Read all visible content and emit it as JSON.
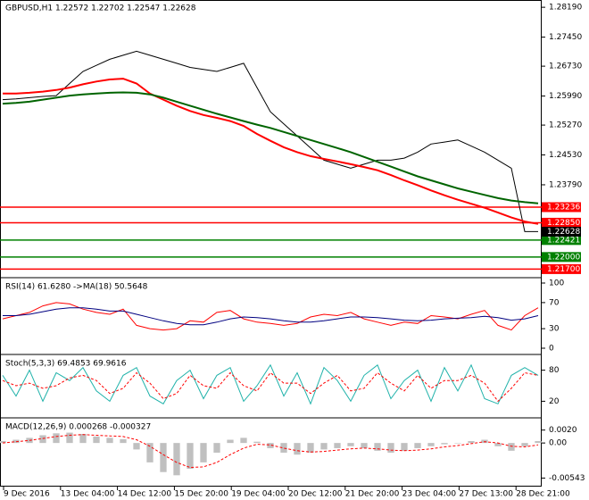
{
  "chart_data": [
    {
      "type": "line",
      "title": "GBPUSD,H1  1.22572 1.22702 1.22547 1.22628",
      "ylim": [
        1.2151,
        1.2837
      ],
      "yticks": [
        {
          "value": 1.2819,
          "label": "1.28190"
        },
        {
          "value": 1.2745,
          "label": "1.27450"
        },
        {
          "value": 1.2673,
          "label": "1.26730"
        },
        {
          "value": 1.2599,
          "label": "1.25990"
        },
        {
          "value": 1.2527,
          "label": "1.25270"
        },
        {
          "value": 1.2453,
          "label": "1.24530"
        },
        {
          "value": 1.2379,
          "label": "1.23790"
        }
      ],
      "series": [
        {
          "color": "#000000",
          "values": [
            1.259,
            1.2592,
            1.2595,
            1.2598,
            1.26,
            1.263,
            1.266,
            1.2675,
            1.269,
            1.27,
            1.271,
            1.27,
            1.269,
            1.268,
            1.267,
            1.2665,
            1.266,
            1.267,
            1.268,
            1.262,
            1.256,
            1.253,
            1.25,
            1.247,
            1.244,
            1.243,
            1.242,
            1.243,
            1.244,
            1.244,
            1.2445,
            1.246,
            1.248,
            1.2485,
            1.249,
            1.2475,
            1.246,
            1.244,
            1.242,
            1.2263,
            1.2263
          ]
        },
        {
          "color": "#ff0000",
          "values": [
            1.2605,
            1.2605,
            1.2607,
            1.261,
            1.2614,
            1.262,
            1.2628,
            1.2635,
            1.264,
            1.2642,
            1.263,
            1.2605,
            1.259,
            1.2575,
            1.2562,
            1.2552,
            1.2545,
            1.2537,
            1.2525,
            1.2505,
            1.2488,
            1.2472,
            1.246,
            1.245,
            1.2443,
            1.2437,
            1.243,
            1.2423,
            1.2415,
            1.2403,
            1.239,
            1.2378,
            1.2365,
            1.2353,
            1.2342,
            1.2332,
            1.2322,
            1.231,
            1.2298,
            1.2288,
            1.2282
          ]
        },
        {
          "color": "#006400",
          "values": [
            1.258,
            1.2582,
            1.2585,
            1.259,
            1.2595,
            1.26,
            1.2603,
            1.2605,
            1.2607,
            1.2608,
            1.2607,
            1.2603,
            1.2595,
            1.2585,
            1.2575,
            1.2565,
            1.2555,
            1.2546,
            1.2537,
            1.2528,
            1.252,
            1.251,
            1.25,
            1.249,
            1.248,
            1.247,
            1.246,
            1.2448,
            1.2436,
            1.2424,
            1.2412,
            1.24,
            1.239,
            1.238,
            1.237,
            1.2362,
            1.2354,
            1.2346,
            1.234,
            1.2336,
            1.2333
          ]
        }
      ],
      "levels": [
        {
          "value": 1.23236,
          "color": "#ff0000"
        },
        {
          "value": 1.2285,
          "label": "1.22850",
          "color": "#ff0000"
        },
        {
          "value": 1.22421,
          "color": "#008000"
        },
        {
          "value": 1.22,
          "label": "1.22000",
          "color": "#008000"
        },
        {
          "value": 1.217,
          "label": "1.21700",
          "color": "#ff0000"
        }
      ],
      "last": 1.22628
    },
    {
      "type": "line",
      "title": "RSI(14) 61.6280 ->MA(18) 50.5648",
      "ylim": [
        0,
        100
      ],
      "yticks": [
        100,
        70,
        30,
        0
      ],
      "series": [
        {
          "color": "#ff0000",
          "values": [
            45,
            50,
            55,
            65,
            70,
            68,
            60,
            55,
            52,
            60,
            35,
            30,
            28,
            30,
            42,
            40,
            55,
            58,
            45,
            40,
            38,
            35,
            38,
            48,
            52,
            50,
            55,
            45,
            40,
            35,
            40,
            38,
            50,
            48,
            45,
            52,
            58,
            35,
            28,
            50,
            62
          ]
        },
        {
          "color": "#000080",
          "values": [
            50,
            50,
            52,
            56,
            60,
            62,
            62,
            60,
            57,
            57,
            52,
            47,
            42,
            38,
            36,
            36,
            40,
            45,
            48,
            47,
            45,
            42,
            40,
            40,
            42,
            45,
            48,
            48,
            47,
            45,
            43,
            42,
            43,
            45,
            46,
            47,
            49,
            47,
            43,
            45,
            50
          ]
        }
      ]
    },
    {
      "type": "line",
      "title": "Stoch(5,3,3) 69.4853 69.9616",
      "ylim": [
        0,
        100
      ],
      "yticks": [
        80,
        20
      ],
      "series": [
        {
          "color": "#20b2aa",
          "values": [
            70,
            30,
            80,
            20,
            75,
            60,
            85,
            40,
            20,
            70,
            85,
            30,
            15,
            60,
            80,
            25,
            70,
            85,
            20,
            50,
            90,
            30,
            75,
            15,
            85,
            60,
            20,
            70,
            90,
            25,
            60,
            80,
            20,
            85,
            40,
            90,
            25,
            15,
            70,
            85,
            70
          ]
        },
        {
          "color": "#ff0000",
          "dash": true,
          "values": [
            60,
            50,
            55,
            45,
            50,
            65,
            70,
            60,
            35,
            45,
            75,
            55,
            25,
            35,
            70,
            50,
            45,
            75,
            50,
            40,
            75,
            55,
            55,
            35,
            55,
            70,
            40,
            45,
            75,
            55,
            40,
            70,
            45,
            60,
            60,
            70,
            55,
            20,
            45,
            75,
            70
          ]
        }
      ]
    },
    {
      "type": "bar",
      "title": "MACD(12,26,9) 0.000268 -0.000327",
      "ylim": [
        -0.0062,
        0.0032
      ],
      "yticks": [
        {
          "value": 0.002,
          "label": "0.0020"
        },
        {
          "value": 0,
          "label": "0.00"
        },
        -0.00543
      ],
      "color": "#c0c0c0",
      "values": [
        0.0003,
        0.0005,
        0.0008,
        0.0012,
        0.0015,
        0.0016,
        0.0014,
        0.001,
        0.0008,
        0.0006,
        -0.001,
        -0.003,
        -0.0045,
        -0.005,
        -0.004,
        -0.003,
        -0.0015,
        0.0005,
        0.0008,
        0.0002,
        -0.0008,
        -0.0015,
        -0.0018,
        -0.0015,
        -0.001,
        -0.0008,
        -0.0005,
        -0.0008,
        -0.0012,
        -0.0015,
        -0.0012,
        -0.0008,
        -0.0005,
        -0.0002,
        0,
        0.0003,
        0.0005,
        -0.0005,
        -0.0012,
        -0.0005,
        0.0003
      ],
      "series": [
        {
          "color": "#ff0000",
          "dash": true,
          "values": [
            0,
            0.0002,
            0.0004,
            0.0007,
            0.001,
            0.0012,
            0.0013,
            0.0012,
            0.0011,
            0.001,
            0.0005,
            -0.0005,
            -0.0018,
            -0.003,
            -0.0038,
            -0.0037,
            -0.003,
            -0.0018,
            -0.0008,
            -0.0002,
            -0.0003,
            -0.0008,
            -0.0012,
            -0.0014,
            -0.0013,
            -0.0011,
            -0.0009,
            -0.0008,
            -0.0009,
            -0.0011,
            -0.0012,
            -0.0011,
            -0.0009,
            -0.0006,
            -0.0004,
            -0.0001,
            0.0002,
            0,
            -0.0005,
            -0.0006,
            -0.0003
          ]
        }
      ]
    }
  ],
  "x_axis_labels": [
    "9 Dec 2016",
    "13 Dec 04:00",
    "14 Dec 12:00",
    "15 Dec 20:00",
    "19 Dec 04:00",
    "20 Dec 12:00",
    "21 Dec 20:00",
    "23 Dec 04:00",
    "27 Dec 13:00",
    "28 Dec 21:00"
  ]
}
